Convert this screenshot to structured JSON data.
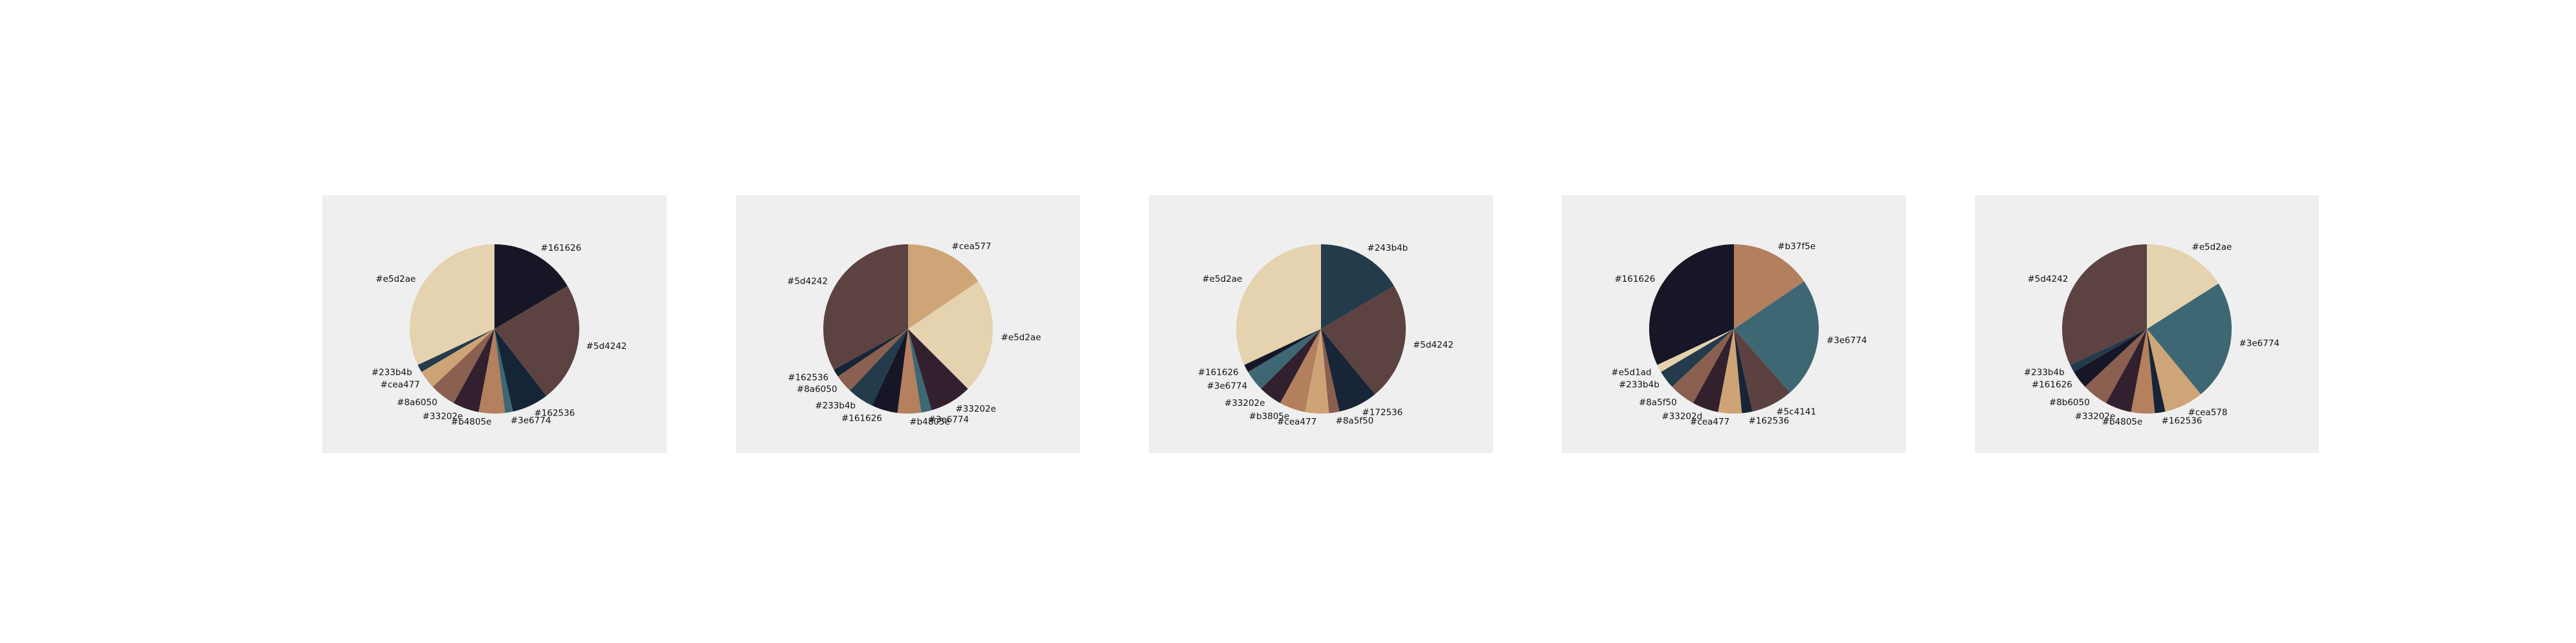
{
  "chart_data": [
    {
      "type": "pie",
      "slices": [
        {
          "label": "#e5d2ae",
          "value": 32,
          "color": "#e5d2ae"
        },
        {
          "label": "#233b4b",
          "value": 1.5,
          "color": "#233b4b"
        },
        {
          "label": "#cea477",
          "value": 3.5,
          "color": "#cea477"
        },
        {
          "label": "#8a6050",
          "value": 5,
          "color": "#8a6050"
        },
        {
          "label": "#33202e",
          "value": 5,
          "color": "#33202e"
        },
        {
          "label": "#b4805e",
          "value": 5,
          "color": "#b4805e"
        },
        {
          "label": "#3e6774",
          "value": 1.5,
          "color": "#3e6774"
        },
        {
          "label": "#162536",
          "value": 7,
          "color": "#162536"
        },
        {
          "label": "#5d4242",
          "value": 23,
          "color": "#5d4242"
        },
        {
          "label": "#161626",
          "value": 16.5,
          "color": "#161626"
        }
      ]
    },
    {
      "type": "pie",
      "slices": [
        {
          "label": "#5d4242",
          "value": 33,
          "color": "#5d4242"
        },
        {
          "label": "#162536",
          "value": 1.5,
          "color": "#162536"
        },
        {
          "label": "#8a6050",
          "value": 3.5,
          "color": "#8a6050"
        },
        {
          "label": "#233b4b",
          "value": 5,
          "color": "#233b4b"
        },
        {
          "label": "#161626",
          "value": 5,
          "color": "#161626"
        },
        {
          "label": "#b4805e",
          "value": 4.5,
          "color": "#b4805e"
        },
        {
          "label": "#3e6774",
          "value": 2,
          "color": "#3e6774"
        },
        {
          "label": "#33202e",
          "value": 8,
          "color": "#33202e"
        },
        {
          "label": "#e5d2ae",
          "value": 22,
          "color": "#e5d2ae"
        },
        {
          "label": "#cea577",
          "value": 15.5,
          "color": "#cea577"
        }
      ]
    },
    {
      "type": "pie",
      "slices": [
        {
          "label": "#e5d2ae",
          "value": 32,
          "color": "#e5d2ae"
        },
        {
          "label": "#161626",
          "value": 1.5,
          "color": "#161626"
        },
        {
          "label": "#3e6774",
          "value": 4,
          "color": "#3e6774"
        },
        {
          "label": "#33202e",
          "value": 4.5,
          "color": "#33202e"
        },
        {
          "label": "#b3805e",
          "value": 5,
          "color": "#b3805e"
        },
        {
          "label": "#cea477",
          "value": 4.5,
          "color": "#cea477"
        },
        {
          "label": "#8a5f50",
          "value": 2,
          "color": "#8a5f50"
        },
        {
          "label": "#172536",
          "value": 7.5,
          "color": "#172536"
        },
        {
          "label": "#5d4242",
          "value": 22.5,
          "color": "#5d4242"
        },
        {
          "label": "#243b4b",
          "value": 16.5,
          "color": "#243b4b"
        }
      ]
    },
    {
      "type": "pie",
      "slices": [
        {
          "label": "#161626",
          "value": 32,
          "color": "#161626"
        },
        {
          "label": "#e5d1ad",
          "value": 1.5,
          "color": "#e5d1ad"
        },
        {
          "label": "#233b4b",
          "value": 3.5,
          "color": "#233b4b"
        },
        {
          "label": "#8a5f50",
          "value": 5,
          "color": "#8a5f50"
        },
        {
          "label": "#33202d",
          "value": 5,
          "color": "#33202d"
        },
        {
          "label": "#cea477",
          "value": 4.5,
          "color": "#cea477"
        },
        {
          "label": "#162536",
          "value": 2,
          "color": "#162536"
        },
        {
          "label": "#5c4141",
          "value": 8,
          "color": "#5c4141"
        },
        {
          "label": "#3e6774",
          "value": 23,
          "color": "#3e6774"
        },
        {
          "label": "#b37f5e",
          "value": 15.5,
          "color": "#b37f5e"
        }
      ]
    },
    {
      "type": "pie",
      "slices": [
        {
          "label": "#5d4242",
          "value": 32,
          "color": "#5d4242"
        },
        {
          "label": "#233b4b",
          "value": 1.5,
          "color": "#233b4b"
        },
        {
          "label": "#161626",
          "value": 3.5,
          "color": "#161626"
        },
        {
          "label": "#8b6050",
          "value": 5,
          "color": "#8b6050"
        },
        {
          "label": "#33202e",
          "value": 5,
          "color": "#33202e"
        },
        {
          "label": "#b4805e",
          "value": 4.5,
          "color": "#b4805e"
        },
        {
          "label": "#162536",
          "value": 2,
          "color": "#162536"
        },
        {
          "label": "#cea578",
          "value": 7.5,
          "color": "#cea578"
        },
        {
          "label": "#3e6774",
          "value": 23,
          "color": "#3e6774"
        },
        {
          "label": "#e5d2ae",
          "value": 16,
          "color": "#e5d2ae"
        }
      ]
    }
  ]
}
